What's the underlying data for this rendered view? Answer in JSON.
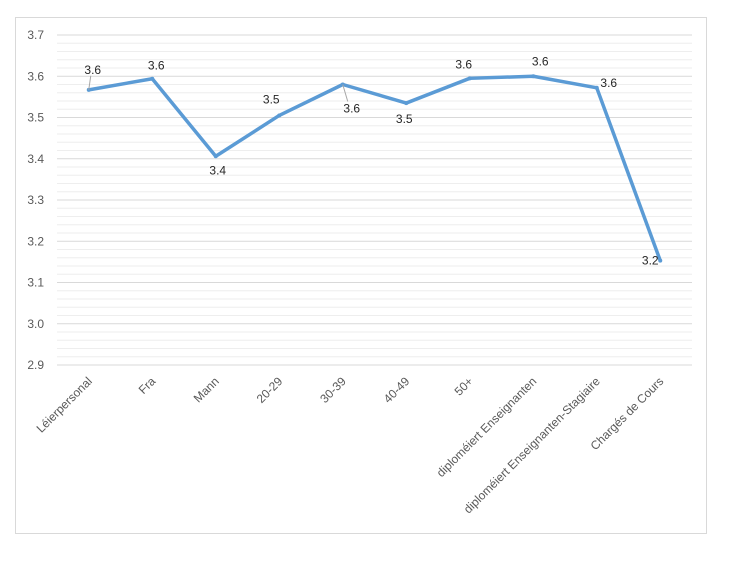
{
  "chart_data": {
    "type": "line",
    "title": "",
    "xlabel": "",
    "ylabel": "",
    "ylim": [
      2.9,
      3.7
    ],
    "yticks": [
      "3.7",
      "3.6",
      "3.5",
      "3.4",
      "3.3",
      "3.2",
      "3.1",
      "3.0",
      "2.9"
    ],
    "grid": true,
    "legend": "none",
    "categories": [
      "Léierpersonal",
      "Fra",
      "Mann",
      "20-29",
      "30-39",
      "40-49",
      "50+",
      "diploméiert Enseignanten",
      "diploméiert Enseignanten-Stagiaire",
      "Chargés de Cours"
    ],
    "series": [
      {
        "values": [
          3.567,
          3.594,
          3.406,
          3.505,
          3.58,
          3.535,
          3.595,
          3.6,
          3.572,
          3.153
        ],
        "data_labels": [
          "3.6",
          "3.6",
          "3.4",
          "3.5",
          "3.6",
          "3.5",
          "3.6",
          "3.6",
          "3.6",
          "3.2"
        ],
        "color": "#5b9bd5"
      }
    ]
  }
}
